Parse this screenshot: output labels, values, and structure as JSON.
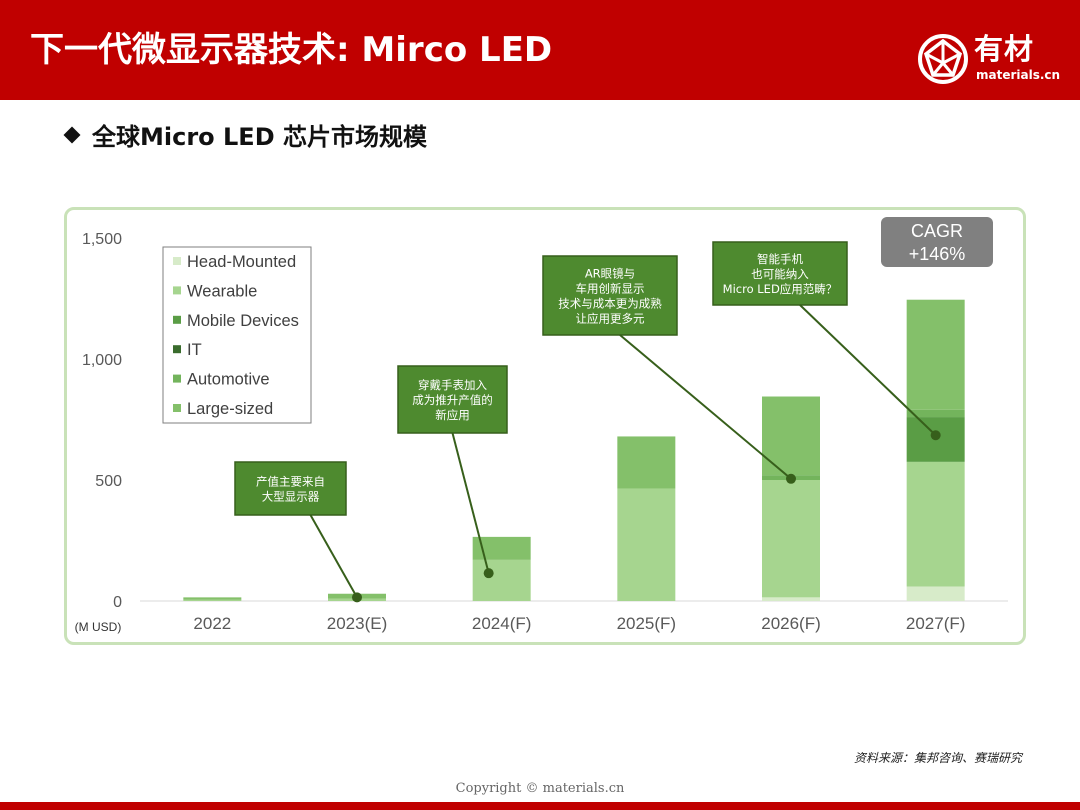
{
  "header": {
    "title": "下一代微显示器技术: Mirco LED",
    "logo_text": "有材",
    "logo_sub": "materials.cn",
    "bg_color": "#c00000"
  },
  "section": {
    "title": "全球Micro LED 芯片市场规模"
  },
  "chart_data": {
    "type": "bar",
    "stacked": true,
    "categories": [
      "2022",
      "2023(E)",
      "2024(F)",
      "2025(F)",
      "2026(F)",
      "2027(F)"
    ],
    "series": [
      {
        "name": "Head-Mounted",
        "color": "#d7ebc9",
        "values": [
          0,
          0,
          0,
          0,
          15,
          60
        ]
      },
      {
        "name": "Wearable",
        "color": "#a6d58f",
        "values": [
          5,
          10,
          170,
          465,
          485,
          515
        ]
      },
      {
        "name": "Mobile Devices",
        "color": "#5a9d45",
        "values": [
          0,
          0,
          0,
          0,
          0,
          185
        ]
      },
      {
        "name": "IT",
        "color": "#3a6c2d",
        "values": [
          0,
          0,
          0,
          0,
          0,
          0
        ]
      },
      {
        "name": "Automotive",
        "color": "#73b45c",
        "values": [
          0,
          0,
          0,
          0,
          20,
          30
        ]
      },
      {
        "name": "Large-sized",
        "color": "#84c06a",
        "values": [
          10,
          20,
          95,
          215,
          325,
          455
        ]
      }
    ],
    "y_ticks": [
      "0",
      "500",
      "1,000",
      "1,500"
    ],
    "ylim": [
      0,
      1500
    ],
    "ylabel": "(M USD)",
    "legend_position": "top-left",
    "grid": false,
    "cagr": {
      "label": "CAGR",
      "value": "+146%"
    },
    "annotations": [
      {
        "lines": [
          "产值主要来自",
          "大型显示器"
        ],
        "target_category": "2023(E)",
        "target_value": 15
      },
      {
        "lines": [
          "穿戴手表加入",
          "成为推升产值的",
          "新应用"
        ],
        "target_category": "2024(F)",
        "target_value": 115
      },
      {
        "lines": [
          "AR眼镜与",
          "车用创新显示",
          "技术与成本更为成熟",
          "让应用更多元"
        ],
        "target_category": "2026(F)",
        "target_value": 505
      },
      {
        "lines": [
          "智能手机",
          "也可能纳入",
          "Micro LED应用范畴？"
        ],
        "target_category": "2027(F)",
        "target_value": 685
      }
    ]
  },
  "source": "资料来源：集邦咨询、赛瑞研究",
  "copyright": "Copyright © materials.cn"
}
